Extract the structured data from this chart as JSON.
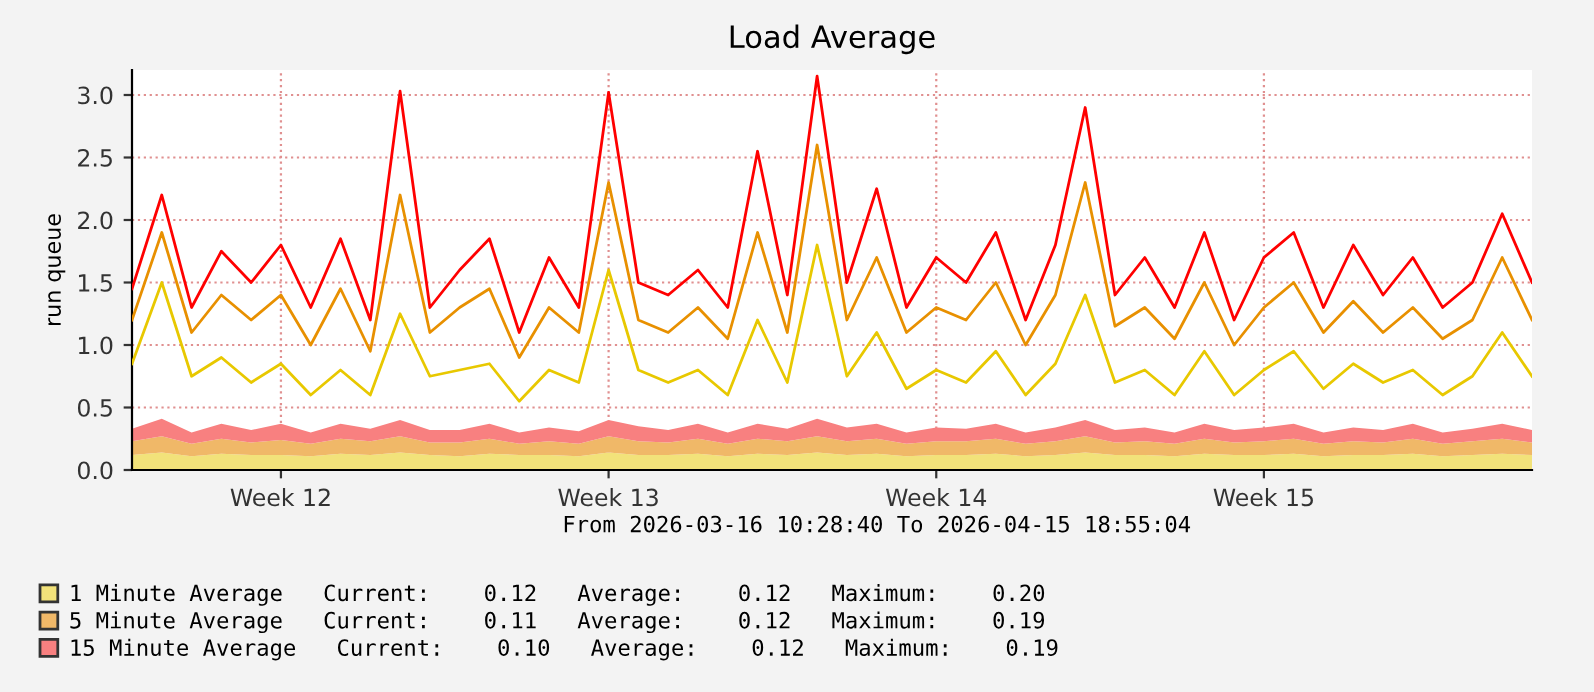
{
  "chart_data": {
    "type": "area",
    "title": "Load Average",
    "ylabel": "run queue",
    "annotations": [
      "From 2026-03-16 10:28:40 To 2026-04-15 18:55:04"
    ],
    "categories": [
      null,
      null,
      null,
      null,
      null,
      "Week 12",
      null,
      null,
      null,
      null,
      null,
      null,
      null,
      null,
      null,
      null,
      "Week 13",
      null,
      null,
      null,
      null,
      null,
      null,
      null,
      null,
      null,
      null,
      "Week 14",
      null,
      null,
      null,
      null,
      null,
      null,
      null,
      null,
      null,
      null,
      "Week 15",
      null,
      null,
      null,
      null,
      null,
      null,
      null,
      null,
      null
    ],
    "stacked": true,
    "series": [
      {
        "name": "1 Minute Average   Current:    0.12   Average:    0.12   Maximum:    0.20",
        "color": "#f2e27a",
        "values": [
          0.12,
          0.14,
          0.11,
          0.13,
          0.12,
          0.12,
          0.11,
          0.13,
          0.12,
          0.14,
          0.12,
          0.11,
          0.13,
          0.12,
          0.12,
          0.11,
          0.14,
          0.12,
          0.12,
          0.13,
          0.11,
          0.13,
          0.12,
          0.14,
          0.12,
          0.13,
          0.11,
          0.12,
          0.12,
          0.13,
          0.11,
          0.12,
          0.14,
          0.12,
          0.12,
          0.11,
          0.13,
          0.12,
          0.12,
          0.13,
          0.11,
          0.12,
          0.12,
          0.13,
          0.11,
          0.12,
          0.13,
          0.12
        ]
      },
      {
        "name": "5 Minute Average   Current:    0.11   Average:    0.12   Maximum:    0.19",
        "color": "#f0b868",
        "values": [
          0.11,
          0.13,
          0.1,
          0.12,
          0.1,
          0.12,
          0.1,
          0.12,
          0.11,
          0.13,
          0.1,
          0.11,
          0.12,
          0.09,
          0.11,
          0.1,
          0.13,
          0.11,
          0.1,
          0.12,
          0.1,
          0.12,
          0.11,
          0.13,
          0.11,
          0.12,
          0.1,
          0.11,
          0.11,
          0.12,
          0.1,
          0.11,
          0.13,
          0.1,
          0.11,
          0.1,
          0.12,
          0.1,
          0.11,
          0.12,
          0.1,
          0.11,
          0.1,
          0.12,
          0.1,
          0.11,
          0.12,
          0.1
        ]
      },
      {
        "name": "15 Minute Average   Current:    0.10   Average:    0.12   Maximum:    0.19",
        "color": "#f88080",
        "values": [
          0.1,
          0.14,
          0.09,
          0.12,
          0.1,
          0.13,
          0.09,
          0.12,
          0.1,
          0.13,
          0.1,
          0.1,
          0.12,
          0.09,
          0.11,
          0.1,
          0.13,
          0.12,
          0.1,
          0.12,
          0.09,
          0.12,
          0.1,
          0.14,
          0.11,
          0.12,
          0.09,
          0.11,
          0.1,
          0.12,
          0.09,
          0.11,
          0.13,
          0.1,
          0.11,
          0.09,
          0.12,
          0.1,
          0.11,
          0.12,
          0.09,
          0.11,
          0.1,
          0.12,
          0.09,
          0.1,
          0.12,
          0.1
        ]
      },
      {
        "type": "line",
        "color": "#e8c800",
        "values": [
          0.85,
          1.5,
          0.75,
          0.9,
          0.7,
          0.85,
          0.6,
          0.8,
          0.6,
          1.25,
          0.75,
          0.8,
          0.85,
          0.55,
          0.8,
          0.7,
          1.6,
          0.8,
          0.7,
          0.8,
          0.6,
          1.2,
          0.7,
          1.8,
          0.75,
          1.1,
          0.65,
          0.8,
          0.7,
          0.95,
          0.6,
          0.85,
          1.4,
          0.7,
          0.8,
          0.6,
          0.95,
          0.6,
          0.8,
          0.95,
          0.65,
          0.85,
          0.7,
          0.8,
          0.6,
          0.75,
          1.1,
          0.75
        ]
      },
      {
        "type": "line",
        "color": "#e89000",
        "values": [
          1.2,
          1.9,
          1.1,
          1.4,
          1.2,
          1.4,
          1.0,
          1.45,
          0.95,
          2.2,
          1.1,
          1.3,
          1.45,
          0.9,
          1.3,
          1.1,
          2.3,
          1.2,
          1.1,
          1.3,
          1.05,
          1.9,
          1.1,
          2.6,
          1.2,
          1.7,
          1.1,
          1.3,
          1.2,
          1.5,
          1.0,
          1.4,
          2.3,
          1.15,
          1.3,
          1.05,
          1.5,
          1.0,
          1.3,
          1.5,
          1.1,
          1.35,
          1.1,
          1.3,
          1.05,
          1.2,
          1.7,
          1.2
        ]
      },
      {
        "type": "line",
        "color": "#ff0000",
        "values": [
          1.45,
          2.2,
          1.3,
          1.75,
          1.5,
          1.8,
          1.3,
          1.85,
          1.2,
          3.03,
          1.3,
          1.6,
          1.85,
          1.1,
          1.7,
          1.3,
          3.02,
          1.5,
          1.4,
          1.6,
          1.3,
          2.55,
          1.4,
          3.15,
          1.5,
          2.25,
          1.3,
          1.7,
          1.5,
          1.9,
          1.2,
          1.8,
          2.9,
          1.4,
          1.7,
          1.3,
          1.9,
          1.2,
          1.7,
          1.9,
          1.3,
          1.8,
          1.4,
          1.7,
          1.3,
          1.5,
          2.05,
          1.5
        ]
      }
    ],
    "ylim": [
      0,
      3.2
    ],
    "yticks": [
      {
        "value": 0,
        "label": "0.0"
      },
      {
        "value": 0.5,
        "label": "0.5"
      },
      {
        "value": 1,
        "label": "1.0"
      },
      {
        "value": 1.5,
        "label": "1.5"
      },
      {
        "value": 2,
        "label": "2.0"
      },
      {
        "value": 2.5,
        "label": "2.5"
      },
      {
        "value": 3,
        "label": "3.0"
      }
    ],
    "grid": true,
    "legend": "bottom left"
  }
}
